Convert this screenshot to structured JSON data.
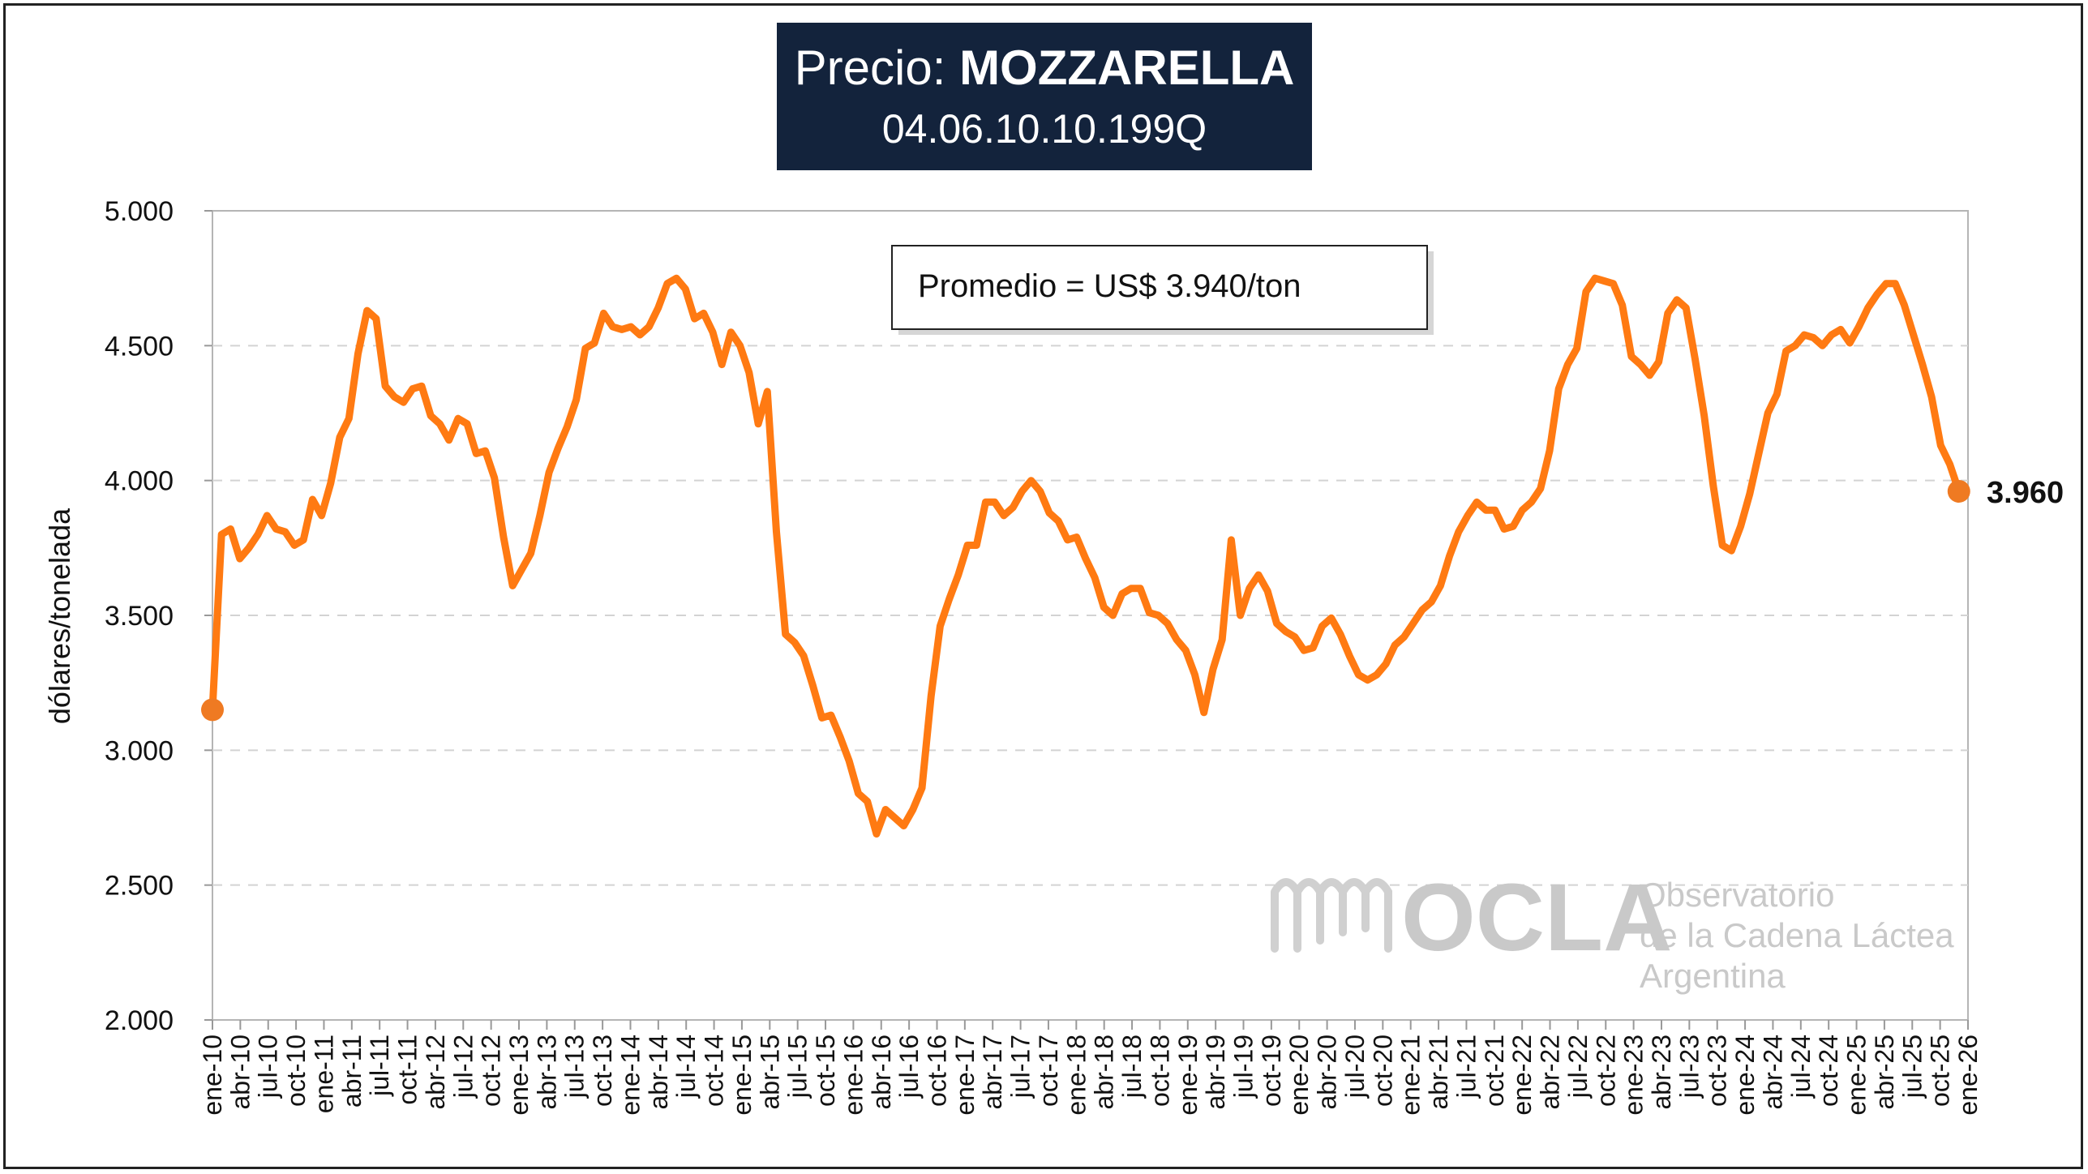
{
  "title": {
    "prefix": "Precio: ",
    "product": "MOZZARELLA",
    "code": "04.06.10.10.199Q"
  },
  "annotation": "Promedio = US$ 3.940/ton",
  "end_value_label": "3.960",
  "watermark": {
    "logo_text": "OCLA",
    "line1": "Observatorio",
    "line2": "de la Cadena Láctea",
    "line3": "Argentina"
  },
  "colors": {
    "line": "#ff7a12",
    "marker": "#ef7a22",
    "title_bg": "#13233c",
    "grid": "#d3d3d3"
  },
  "chart_data": {
    "type": "line",
    "title": "Precio: MOZZARELLA",
    "subtitle": "04.06.10.10.199Q",
    "xlabel": "",
    "ylabel": "dólares/tonelada",
    "ylim": [
      2000,
      5000
    ],
    "yticks": [
      2000,
      2500,
      3000,
      3500,
      4000,
      4500,
      5000
    ],
    "ytick_labels": [
      "2.000",
      "2.500",
      "3.000",
      "3.500",
      "4.000",
      "4.500",
      "5.000"
    ],
    "grid": "horizontal dashed",
    "x_tick_labels": [
      "ene-10",
      "abr-10",
      "jul-10",
      "oct-10",
      "ene-11",
      "abr-11",
      "jul-11",
      "oct-11",
      "abr-12",
      "jul-12",
      "oct-12",
      "ene-13",
      "abr-13",
      "jul-13",
      "oct-13",
      "ene-14",
      "abr-14",
      "jul-14",
      "oct-14",
      "ene-15",
      "abr-15",
      "jul-15",
      "oct-15",
      "ene-16",
      "abr-16",
      "jul-16",
      "oct-16",
      "ene-17",
      "abr-17",
      "jul-17",
      "oct-17",
      "ene-18",
      "abr-18",
      "jul-18",
      "oct-18",
      "ene-19",
      "abr-19",
      "jul-19",
      "oct-19",
      "ene-20",
      "abr-20",
      "jul-20",
      "oct-20",
      "ene-21",
      "abr-21",
      "jul-21",
      "oct-21",
      "ene-22",
      "abr-22",
      "jul-22",
      "oct-22",
      "ene-23",
      "abr-23",
      "jul-23",
      "oct-23",
      "ene-24",
      "abr-24",
      "jul-24",
      "oct-24",
      "ene-25",
      "abr-25",
      "jul-25",
      "oct-25",
      "ene-26"
    ],
    "series": [
      {
        "x_start": "ene-10",
        "frequency": "monthly",
        "values": [
          3150,
          3800,
          3820,
          3710,
          3750,
          3800,
          3870,
          3820,
          3810,
          3760,
          3780,
          3930,
          3870,
          3990,
          4160,
          4230,
          4470,
          4630,
          4600,
          4350,
          4310,
          4290,
          4340,
          4350,
          4240,
          4210,
          4150,
          4230,
          4210,
          4100,
          4110,
          4010,
          3790,
          3610,
          3670,
          3730,
          3870,
          4030,
          4120,
          4200,
          4300,
          4490,
          4510,
          4620,
          4570,
          4560,
          4570,
          4540,
          4570,
          4640,
          4730,
          4750,
          4710,
          4600,
          4620,
          4550,
          4430,
          4550,
          4500,
          4400,
          4210,
          4330,
          3810,
          3430,
          3400,
          3350,
          3240,
          3120,
          3130,
          3050,
          2960,
          2840,
          2810,
          2690,
          2780,
          2750,
          2720,
          2780,
          2860,
          3200,
          3460,
          3560,
          3650,
          3760,
          3760,
          3920,
          3920,
          3870,
          3900,
          3960,
          4000,
          3960,
          3880,
          3850,
          3780,
          3790,
          3710,
          3640,
          3530,
          3500,
          3580,
          3600,
          3600,
          3510,
          3500,
          3470,
          3410,
          3370,
          3280,
          3140,
          3300,
          3410,
          3780,
          3500,
          3600,
          3650,
          3590,
          3470,
          3440,
          3420,
          3370,
          3380,
          3460,
          3490,
          3430,
          3350,
          3280,
          3260,
          3280,
          3320,
          3390,
          3420,
          3470,
          3520,
          3550,
          3610,
          3720,
          3810,
          3870,
          3920,
          3890,
          3890,
          3820,
          3830,
          3890,
          3920,
          3970,
          4110,
          4340,
          4430,
          4490,
          4700,
          4750,
          4740,
          4730,
          4650,
          4460,
          4430,
          4390,
          4440,
          4620,
          4670,
          4640,
          4450,
          4240,
          3980,
          3760,
          3740,
          3830,
          3950,
          4100,
          4250,
          4320,
          4480,
          4500,
          4540,
          4530,
          4500,
          4540,
          4560,
          4510,
          4570,
          4640,
          4690,
          4730,
          4730,
          4650,
          4540,
          4430,
          4310,
          4130,
          4060,
          3960
        ]
      }
    ],
    "annotations": [
      "Promedio = US$ 3.940/ton",
      "3.960"
    ]
  }
}
